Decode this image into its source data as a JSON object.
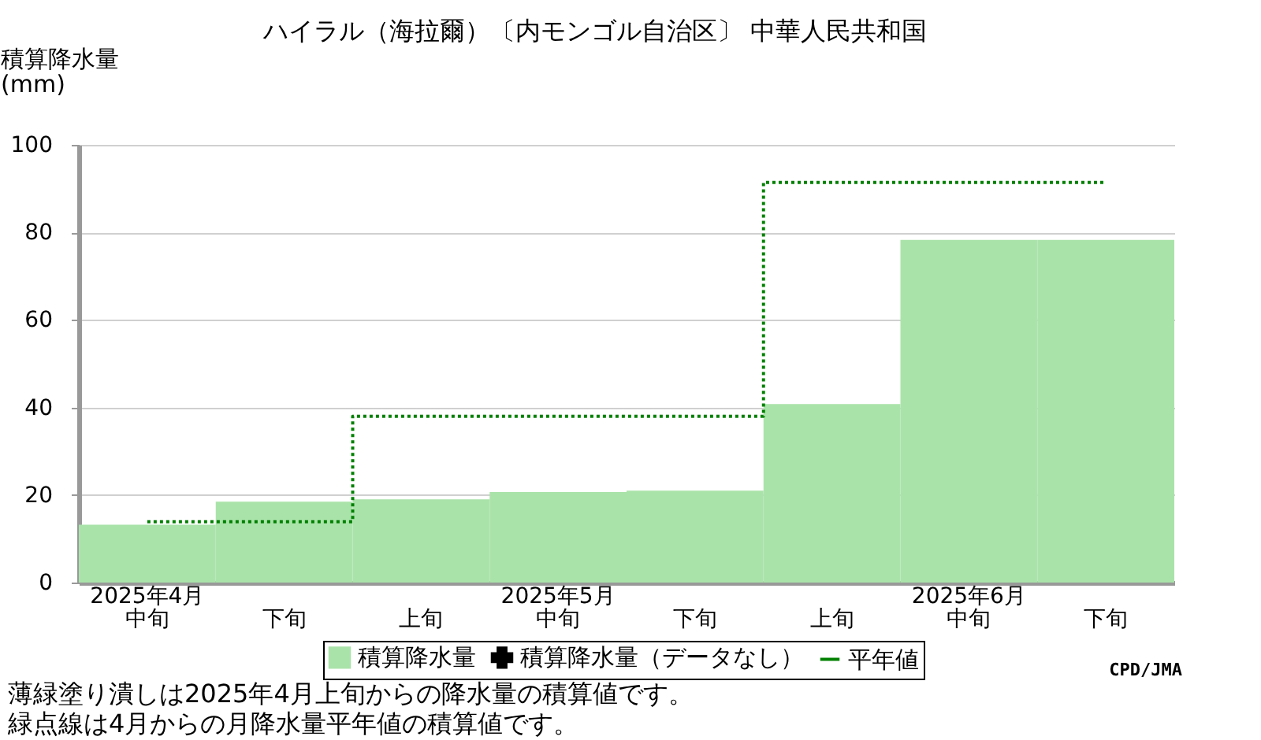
{
  "chart_data": {
    "type": "bar",
    "title": "ハイラル（海拉爾）〔内モンゴル自治区〕 中華人民共和国",
    "ylabel": "積算降水量(mm)",
    "categories": [
      "中旬",
      "下旬",
      "上旬",
      "中旬",
      "下旬",
      "上旬",
      "中旬",
      "下旬"
    ],
    "series": [
      {
        "name": "積算降水量",
        "color": "#aae3aa",
        "values": [
          13.2,
          18.5,
          19.0,
          20.7,
          21.0,
          40.8,
          78.3,
          78.3
        ]
      },
      {
        "name": "積算降水量（データなし）",
        "type": "scatter",
        "marker": "cross",
        "color": "#000000",
        "values": [
          null,
          null,
          null,
          null,
          null,
          null,
          null,
          null
        ]
      },
      {
        "name": "平年値",
        "type": "step",
        "line_style": "dotted",
        "color": "#008000",
        "values": [
          13.9,
          13.9,
          38.0,
          38.0,
          38.0,
          91.4,
          91.4,
          91.4
        ]
      }
    ],
    "ylim": [
      0,
      100
    ],
    "yticks": [
      0,
      20,
      40,
      60,
      80,
      100
    ],
    "grid": "y",
    "legend": "bottom",
    "annotations": [
      "2025年4月",
      "2025年5月",
      "2025年6月",
      "CPD/JMA",
      "薄緑塗り潰しは2025年4月上旬からの降水量の積算値です。",
      "緑点線は4月からの月降水量平年値の積算値です。"
    ]
  }
}
